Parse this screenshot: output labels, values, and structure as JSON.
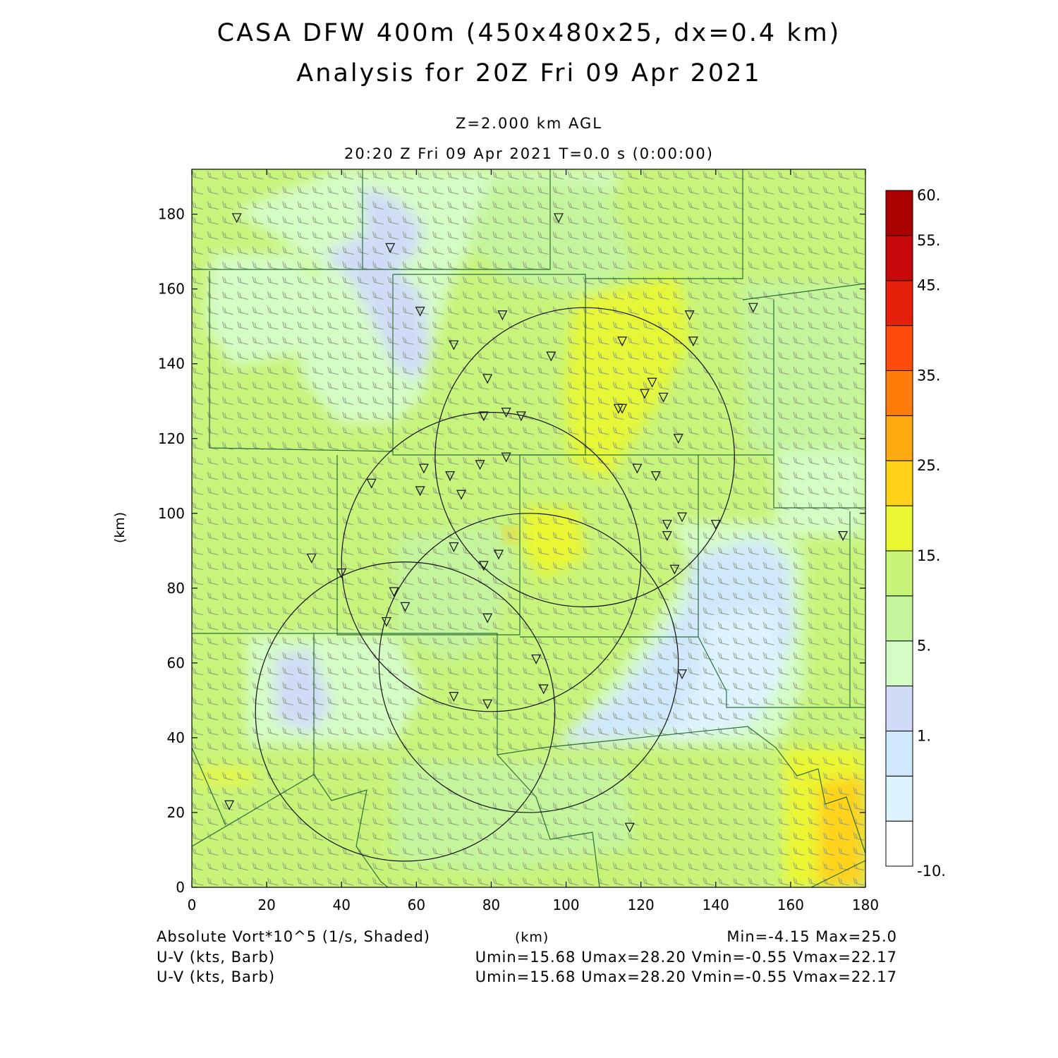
{
  "header": {
    "title_line1": "CASA DFW 400m (450x480x25, dx=0.4 km)",
    "title_line2": "Analysis for 20Z Fri 09 Apr 2021",
    "level": "Z=2.000 km AGL",
    "valid_time": "20:20 Z Fri 09 Apr 2021    T=0.0 s (0:00:00)"
  },
  "footer": {
    "field_shaded": "Absolute Vort*10^5 (1/s, Shaded)",
    "x_unit": "(km)",
    "minmax": "Min=-4.15 Max=25.0",
    "barb_line1": "U-V (kts, Barb)",
    "barb_stats1": "Umin=15.68 Umax=28.20 Vmin=-0.55 Vmax=22.17",
    "barb_line2": "U-V (kts, Barb)",
    "barb_stats2": "Umin=15.68 Umax=28.20 Vmin=-0.55 Vmax=22.17"
  },
  "chart_data": {
    "type": "heatmap",
    "xlabel": "(km)",
    "ylabel": "(km)",
    "xlim": [
      0,
      180
    ],
    "ylim": [
      0,
      192
    ],
    "x_ticks": [
      0,
      20,
      40,
      60,
      80,
      100,
      120,
      140,
      160,
      180
    ],
    "y_ticks": [
      0,
      20,
      40,
      60,
      80,
      100,
      120,
      140,
      160,
      180
    ],
    "colorbar": {
      "labels": [
        "60.",
        "55.",
        "45.",
        "35.",
        "25.",
        "15.",
        "5.",
        "1.",
        "-10."
      ],
      "colors": [
        "#ffffff",
        "#ddf3ff",
        "#d0e8fb",
        "#d0dcf7",
        "#d4fdc6",
        "#c4f59c",
        "#c7f478",
        "#eaf733",
        "#ffd21a",
        "#ffaa0e",
        "#ff7c0a",
        "#ff4b0a",
        "#e5200a",
        "#c8080a",
        "#aa0000"
      ]
    },
    "radar_circles": [
      {
        "center_km": [
          105,
          115
        ],
        "radius_km": 40
      },
      {
        "center_km": [
          80,
          87
        ],
        "radius_km": 40
      },
      {
        "center_km": [
          90,
          60
        ],
        "radius_km": 40
      },
      {
        "center_km": [
          57,
          47
        ],
        "radius_km": 40
      }
    ],
    "stations_km": [
      [
        12,
        179
      ],
      [
        53,
        171
      ],
      [
        61,
        154
      ],
      [
        98,
        179
      ],
      [
        83,
        153
      ],
      [
        70,
        145
      ],
      [
        96,
        142
      ],
      [
        115,
        146
      ],
      [
        133,
        153
      ],
      [
        134,
        146
      ],
      [
        150,
        155
      ],
      [
        79,
        136
      ],
      [
        123,
        135
      ],
      [
        114,
        128
      ],
      [
        115,
        128
      ],
      [
        121,
        132
      ],
      [
        126,
        131
      ],
      [
        78,
        126
      ],
      [
        84,
        127
      ],
      [
        88,
        126
      ],
      [
        130,
        120
      ],
      [
        62,
        112
      ],
      [
        69,
        110
      ],
      [
        61,
        106
      ],
      [
        72,
        105
      ],
      [
        48,
        108
      ],
      [
        77,
        113
      ],
      [
        84,
        115
      ],
      [
        119,
        112
      ],
      [
        124,
        110
      ],
      [
        127,
        97
      ],
      [
        131,
        99
      ],
      [
        127,
        94
      ],
      [
        140,
        97
      ],
      [
        174,
        94
      ],
      [
        32,
        88
      ],
      [
        40,
        84
      ],
      [
        70,
        91
      ],
      [
        78,
        86
      ],
      [
        82,
        89
      ],
      [
        129,
        85
      ],
      [
        54,
        79
      ],
      [
        57,
        75
      ],
      [
        52,
        71
      ],
      [
        79,
        72
      ],
      [
        92,
        61
      ],
      [
        131,
        57
      ],
      [
        70,
        51
      ],
      [
        79,
        49
      ],
      [
        94,
        53
      ],
      [
        10,
        22
      ],
      [
        117,
        16
      ]
    ]
  }
}
